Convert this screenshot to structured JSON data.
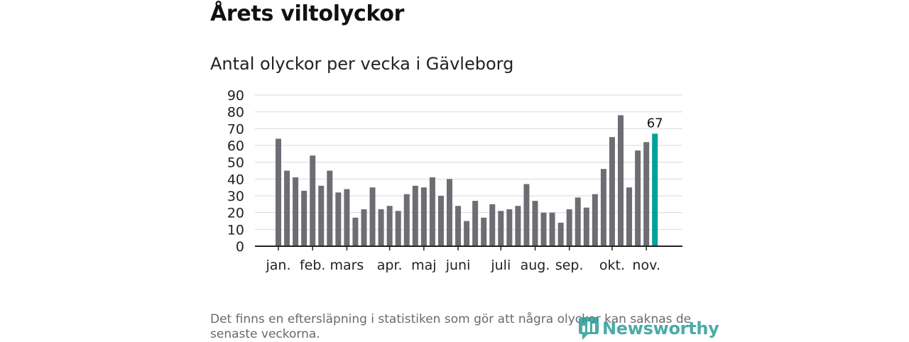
{
  "header": {
    "title": "Årets viltolyckor",
    "subtitle": "Antal olyckor per vecka i Gävleborg"
  },
  "chart_data": {
    "type": "bar",
    "title": "Antal olyckor per vecka i Gävleborg",
    "xlabel": "",
    "ylabel": "",
    "ylim": [
      0,
      90
    ],
    "yticks": [
      0,
      10,
      20,
      30,
      40,
      50,
      60,
      70,
      80,
      90
    ],
    "grid": true,
    "values": [
      64,
      45,
      41,
      33,
      54,
      36,
      45,
      32,
      34,
      17,
      22,
      35,
      22,
      24,
      21,
      31,
      36,
      35,
      41,
      30,
      40,
      24,
      15,
      27,
      17,
      25,
      21,
      22,
      24,
      37,
      27,
      20,
      20,
      14,
      22,
      29,
      23,
      31,
      46,
      65,
      78,
      35,
      57,
      62,
      67
    ],
    "highlight_index": 44,
    "highlight_label": "67",
    "month_labels": [
      {
        "label": "jan.",
        "index": 0
      },
      {
        "label": "feb.",
        "index": 4
      },
      {
        "label": "mars",
        "index": 8
      },
      {
        "label": "apr.",
        "index": 13
      },
      {
        "label": "maj",
        "index": 17
      },
      {
        "label": "juni",
        "index": 21
      },
      {
        "label": "juli",
        "index": 26
      },
      {
        "label": "aug.",
        "index": 30
      },
      {
        "label": "sep.",
        "index": 34
      },
      {
        "label": "okt.",
        "index": 39
      },
      {
        "label": "nov.",
        "index": 43
      }
    ],
    "colors": {
      "bar": "#6e6d73",
      "highlight": "#00a19a",
      "grid": "#d9d9d9",
      "axis": "#222222"
    }
  },
  "footer": {
    "note": "Det finns en eftersläpning i statistiken som gör att några olyckor kan saknas de senaste veckorna.",
    "logo_text": "Newsworthy"
  }
}
